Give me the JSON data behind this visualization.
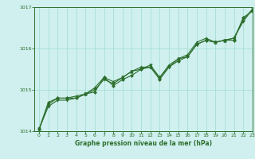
{
  "background_color": "#cff0ee",
  "grid_color": "#a8ddd8",
  "line_color": "#2d6e2d",
  "title": "Graphe pression niveau de la mer (hPa)",
  "xlim": [
    -0.5,
    23
  ],
  "ylim": [
    1014.0,
    1017.0
  ],
  "yticks": [
    1014,
    1015,
    1016,
    1017
  ],
  "xticks": [
    0,
    1,
    2,
    3,
    4,
    5,
    6,
    7,
    8,
    9,
    10,
    11,
    12,
    13,
    14,
    15,
    16,
    17,
    18,
    19,
    20,
    21,
    22,
    23
  ],
  "series1": {
    "x": [
      0,
      1,
      2,
      3,
      4,
      5,
      6,
      7,
      8,
      9,
      10,
      11,
      12,
      13,
      14,
      15,
      16,
      17,
      18,
      19,
      20,
      21,
      22,
      23
    ],
    "y": [
      1014.05,
      1014.7,
      1014.8,
      1014.8,
      1014.8,
      1014.9,
      1014.95,
      1015.3,
      1015.1,
      1015.25,
      1015.35,
      1015.5,
      1015.55,
      1015.25,
      1015.55,
      1015.7,
      1015.8,
      1016.1,
      1016.2,
      1016.15,
      1016.2,
      1016.2,
      1016.75,
      1016.9
    ]
  },
  "series2": {
    "x": [
      0,
      1,
      2,
      3,
      4,
      5,
      6,
      7,
      8,
      9,
      10,
      11,
      12,
      13,
      14,
      15,
      16,
      17,
      18,
      19,
      20,
      21,
      22,
      23
    ],
    "y": [
      1014.05,
      1014.65,
      1014.8,
      1014.8,
      1014.85,
      1014.9,
      1015.05,
      1015.3,
      1015.2,
      1015.3,
      1015.45,
      1015.55,
      1015.55,
      1015.3,
      1015.6,
      1015.75,
      1015.85,
      1016.15,
      1016.25,
      1016.15,
      1016.2,
      1016.25,
      1016.7,
      1016.95
    ]
  },
  "series3": {
    "x": [
      0,
      1,
      2,
      3,
      4,
      5,
      6,
      7,
      8,
      9,
      10,
      11,
      12,
      13,
      14,
      15,
      16,
      17,
      18,
      19,
      20,
      21,
      22,
      23
    ],
    "y": [
      1014.05,
      1014.6,
      1014.75,
      1014.75,
      1014.8,
      1014.9,
      1015.0,
      1015.25,
      1015.15,
      1015.3,
      1015.45,
      1015.5,
      1015.6,
      1015.3,
      1015.55,
      1015.75,
      1015.8,
      1016.1,
      1016.2,
      1016.15,
      1016.2,
      1016.25,
      1016.65,
      1016.95
    ]
  }
}
